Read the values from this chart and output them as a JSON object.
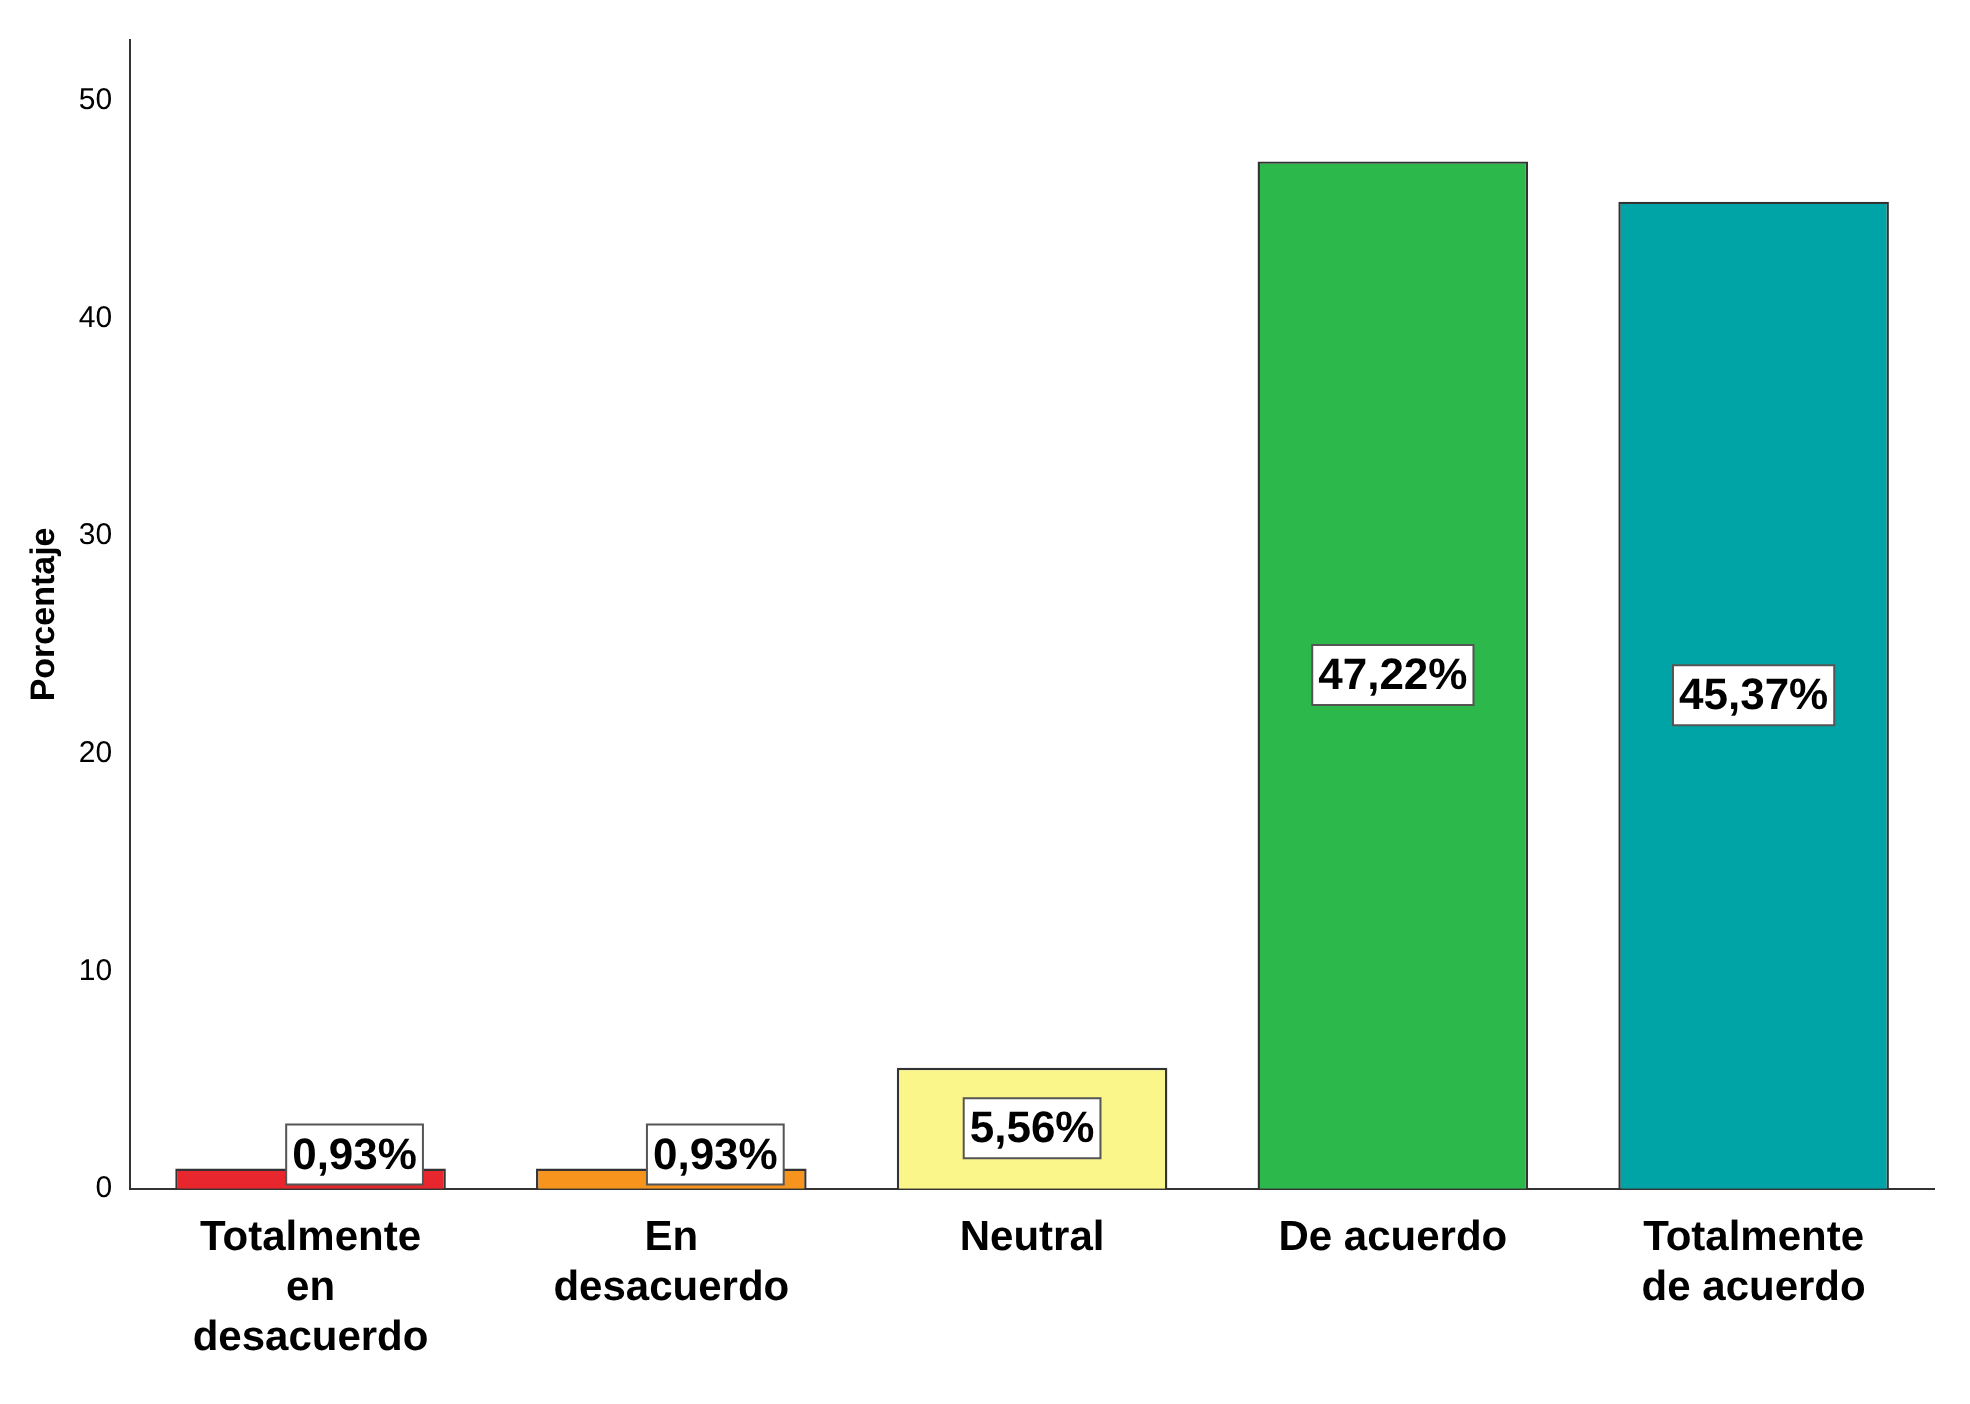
{
  "chart_data": {
    "type": "bar",
    "ylabel": "Porcentaje",
    "categories": [
      "Totalmente en desacuerdo",
      "En desacuerdo",
      "Neutral",
      "De acuerdo",
      "Totalmente de acuerdo"
    ],
    "values": [
      0.93,
      0.93,
      5.56,
      47.22,
      45.37
    ],
    "colors": [
      "#e8262d",
      "#f7941d",
      "#fbf68a",
      "#2db84b",
      "#00a4a6"
    ],
    "value_labels": [
      "0,93%",
      "0,93%",
      "5,56%",
      "47,22%",
      "45,37%"
    ],
    "ylim": [
      0,
      52.8
    ],
    "yticks": [
      0,
      10,
      20,
      30,
      40,
      50
    ],
    "grid": false,
    "legend": false
  }
}
